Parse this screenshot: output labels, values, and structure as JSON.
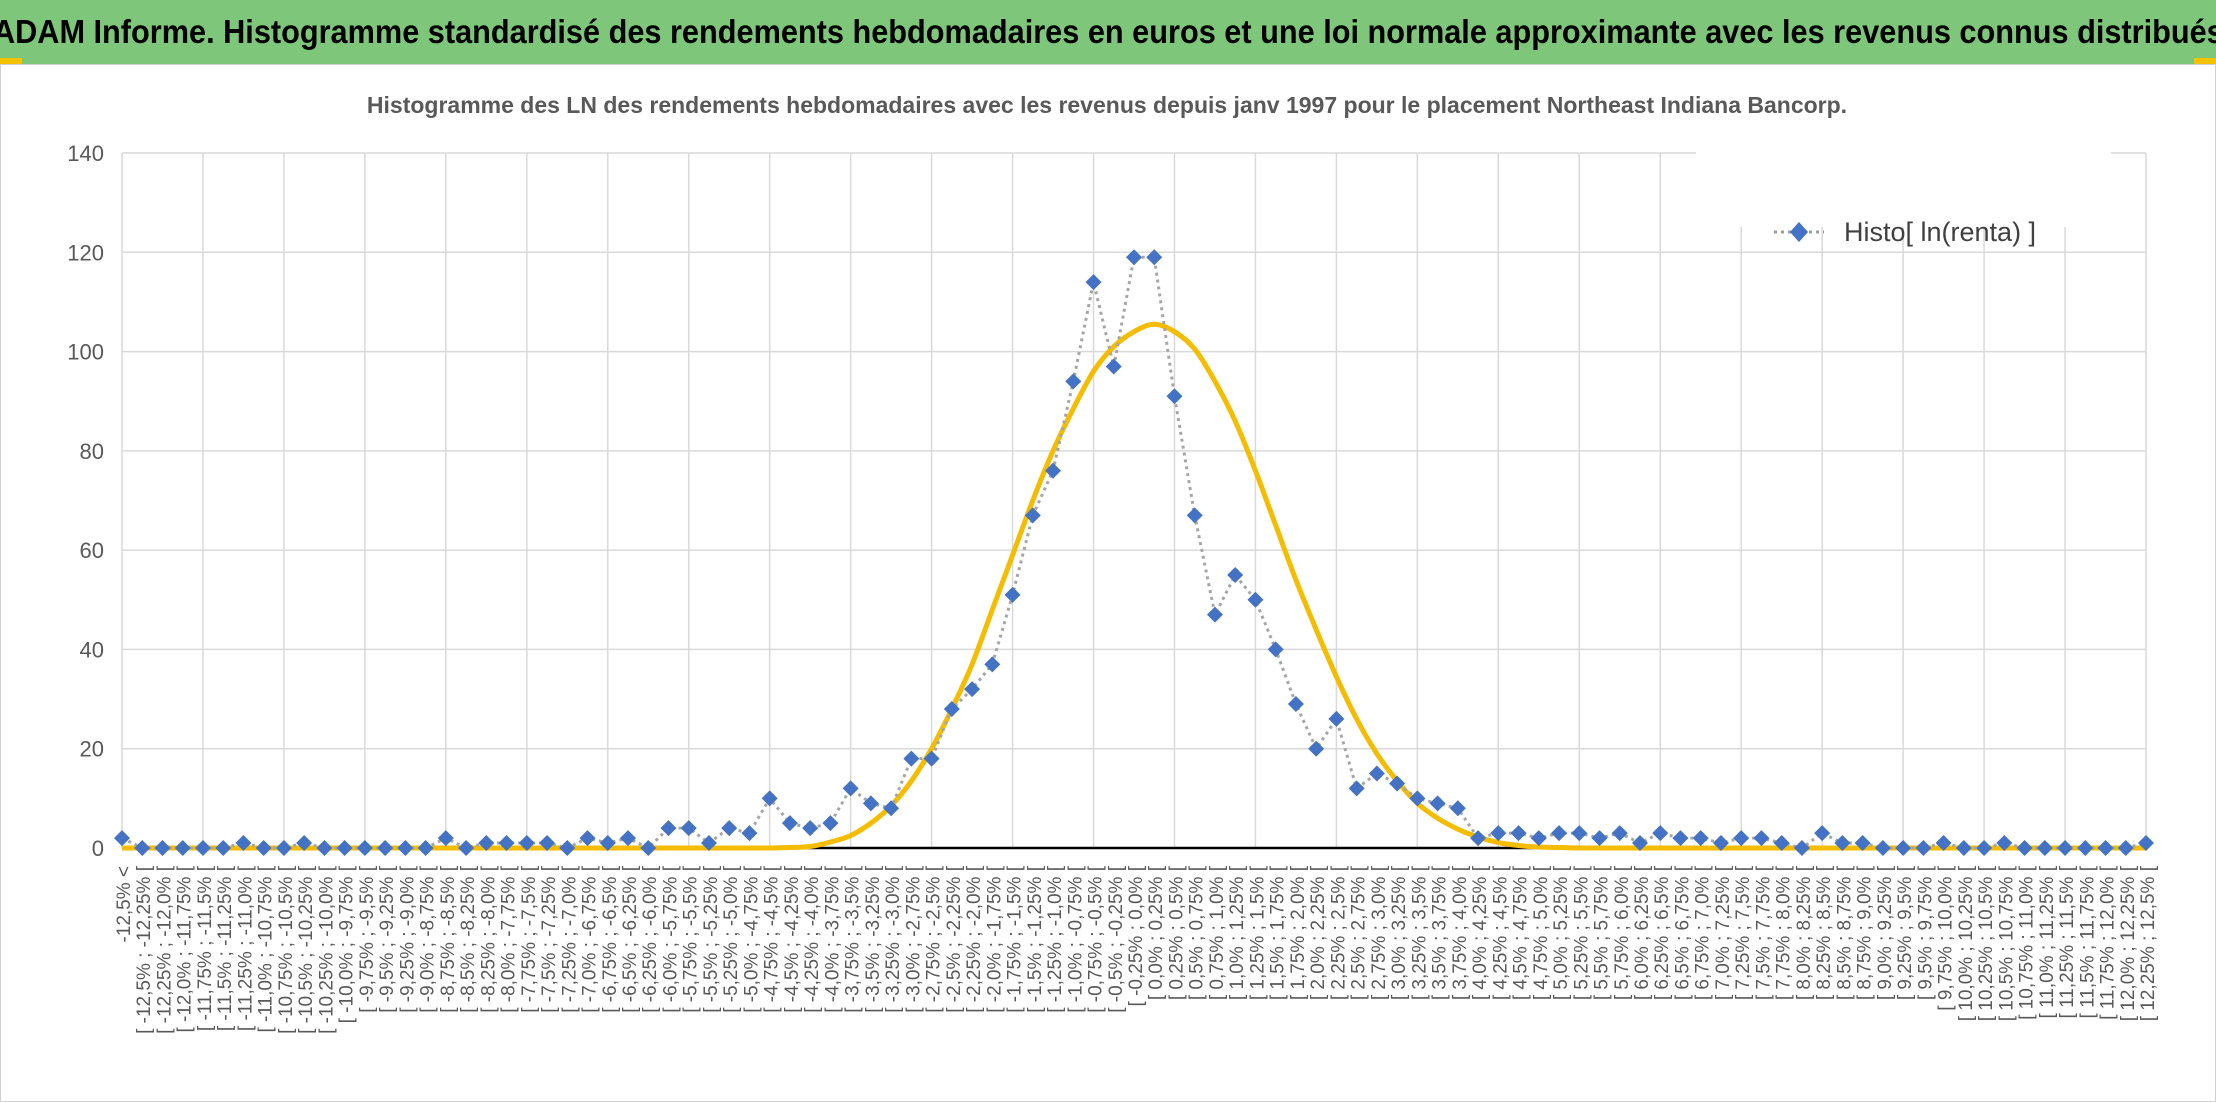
{
  "header": {
    "banner_title": "ADAM Informe. Histogramme standardisé des rendements hebdomadaires en euros et une loi normale approximante avec les revenus connus distribués"
  },
  "colors": {
    "banner_bg": "#7dc67a",
    "histogram": "#4472c4",
    "normal_curve": "#f5bc00",
    "grid": "#d9d9d9"
  },
  "chart_data": {
    "type": "line",
    "title": "Histogramme des LN des rendements hebdomadaires avec les revenus depuis janv 1997 pour le placement Northeast Indiana Bancorp.",
    "xlabel": "",
    "ylabel": "",
    "ylim": [
      0,
      140
    ],
    "yticks": [
      0,
      20,
      40,
      60,
      80,
      100,
      120,
      140
    ],
    "grid": true,
    "legend_position": "top-right",
    "categories": [
      "-12,5% <",
      "[ -12,5% ; -12,25% [",
      "[ -12,25% ; -12,0% [",
      "[ -12,0% ; -11,75% [",
      "[ -11,75% ; -11,5% [",
      "[ -11,5% ; -11,25% [",
      "[ -11,25% ; -11,0% [",
      "[ -11,0% ; -10,75% [",
      "[ -10,75% ; -10,5% [",
      "[ -10,5% ; -10,25% [",
      "[ -10,25% ; -10,0% [",
      "[ -10,0% ; -9,75% [",
      "[ -9,75% ; -9,5% [",
      "[ -9,5% ; -9,25% [",
      "[ -9,25% ; -9,0% [",
      "[ -9,0% ; -8,75% [",
      "[ -8,75% ; -8,5% [",
      "[ -8,5% ; -8,25% [",
      "[ -8,25% ; -8,0% [",
      "[ -8,0% ; -7,75% [",
      "[ -7,75% ; -7,5% [",
      "[ -7,5% ; -7,25% [",
      "[ -7,25% ; -7,0% [",
      "[ -7,0% ; -6,75% [",
      "[ -6,75% ; -6,5% [",
      "[ -6,5% ; -6,25% [",
      "[ -6,25% ; -6,0% [",
      "[ -6,0% ; -5,75% [",
      "[ -5,75% ; -5,5% [",
      "[ -5,5% ; -5,25% [",
      "[ -5,25% ; -5,0% [",
      "[ -5,0% ; -4,75% [",
      "[ -4,75% ; -4,5% [",
      "[ -4,5% ; -4,25% [",
      "[ -4,25% ; -4,0% [",
      "[ -4,0% ; -3,75% [",
      "[ -3,75% ; -3,5% [",
      "[ -3,5% ; -3,25% [",
      "[ -3,25% ; -3,0% [",
      "[ -3,0% ; -2,75% [",
      "[ -2,75% ; -2,5% [",
      "[ -2,5% ; -2,25% [",
      "[ -2,25% ; -2,0% [",
      "[ -2,0% ; -1,75% [",
      "[ -1,75% ; -1,5% [",
      "[ -1,5% ; -1,25% [",
      "[ -1,25% ; -1,0% [",
      "[ -1,0% ; -0,75% [",
      "[ -0,75% ; -0,5% [",
      "[ -0,5% ; -0,25% [",
      "[ -0,25% ; 0,0% [",
      "[ 0,0% ; 0,25% [",
      "[ 0,25% ; 0,5% [",
      "[ 0,5% ; 0,75% [",
      "[ 0,75% ; 1,0% [",
      "[ 1,0% ; 1,25% [",
      "[ 1,25% ; 1,5% [",
      "[ 1,5% ; 1,75% [",
      "[ 1,75% ; 2,0% [",
      "[ 2,0% ; 2,25% [",
      "[ 2,25% ; 2,5% [",
      "[ 2,5% ; 2,75% [",
      "[ 2,75% ; 3,0% [",
      "[ 3,0% ; 3,25% [",
      "[ 3,25% ; 3,5% [",
      "[ 3,5% ; 3,75% [",
      "[ 3,75% ; 4,0% [",
      "[ 4,0% ; 4,25% [",
      "[ 4,25% ; 4,5% [",
      "[ 4,5% ; 4,75% [",
      "[ 4,75% ; 5,0% [",
      "[ 5,0% ; 5,25% [",
      "[ 5,25% ; 5,5% [",
      "[ 5,5% ; 5,75% [",
      "[ 5,75% ; 6,0% [",
      "[ 6,0% ; 6,25% [",
      "[ 6,25% ; 6,5% [",
      "[ 6,5% ; 6,75% [",
      "[ 6,75% ; 7,0% [",
      "[ 7,0% ; 7,25% [",
      "[ 7,25% ; 7,5% [",
      "[ 7,5% ; 7,75% [",
      "[ 7,75% ; 8,0% [",
      "[ 8,0% ; 8,25% [",
      "[ 8,25% ; 8,5% [",
      "[ 8,5% ; 8,75% [",
      "[ 8,75% ; 9,0% [",
      "[ 9,0% ; 9,25% [",
      "[ 9,25% ; 9,5% [",
      "[ 9,5% ; 9,75% [",
      "[ 9,75% ; 10,0% [",
      "[ 10,0% ; 10,25% [",
      "[ 10,25% ; 10,5% [",
      "[ 10,5% ; 10,75% [",
      "[ 10,75% ; 11,0% [",
      "[ 11,0% ; 11,25% [",
      "[ 11,25% ; 11,5% [",
      "[ 11,5% ; 11,75% [",
      "[ 11,75% ; 12,0% [",
      "[ 12,0% ; 12,25% [",
      "[ 12,25% ; 12,5% ["
    ],
    "series": [
      {
        "name": "Histo[ ln(renta) ]",
        "style": "dotted-line-with-diamond-markers",
        "values": [
          2,
          0,
          0,
          0,
          0,
          0,
          1,
          0,
          0,
          1,
          0,
          0,
          0,
          0,
          0,
          0,
          2,
          0,
          1,
          1,
          1,
          1,
          0,
          2,
          1,
          2,
          0,
          4,
          4,
          1,
          4,
          3,
          10,
          5,
          4,
          5,
          12,
          9,
          8,
          18,
          18,
          28,
          32,
          37,
          51,
          67,
          76,
          94,
          114,
          97,
          119,
          119,
          91,
          67,
          47,
          55,
          50,
          40,
          29,
          20,
          26,
          12,
          15,
          13,
          10,
          9,
          8,
          2,
          3,
          3,
          2,
          3,
          3,
          2,
          3,
          1,
          3,
          2,
          2,
          1,
          2,
          2,
          1,
          0,
          3,
          1,
          1,
          0,
          0,
          0,
          1,
          0,
          0,
          1,
          0,
          0,
          0,
          0,
          0,
          0,
          1
        ]
      },
      {
        "style": "smooth-curve",
        "values": [
          0,
          0,
          0,
          0,
          0,
          0,
          0,
          0,
          0,
          0,
          0,
          0,
          0,
          0,
          0,
          0,
          0,
          0,
          0,
          0,
          0,
          0,
          0,
          0,
          0,
          0,
          0,
          0,
          0,
          0,
          0,
          0,
          0,
          0.1,
          0.3,
          1.2,
          2.5,
          5,
          8.5,
          13.5,
          20,
          28,
          37,
          48,
          59,
          70,
          80,
          88.5,
          96,
          101,
          104,
          105.5,
          104,
          100.5,
          94,
          86,
          76,
          65,
          54,
          44,
          34.5,
          26,
          19,
          13.5,
          9,
          6,
          3.8,
          2.2,
          1.1,
          0.5,
          0.2,
          0.1,
          0,
          0,
          0,
          0,
          0,
          0,
          0,
          0,
          0,
          0,
          0,
          0,
          0,
          0,
          0,
          0,
          0,
          0,
          0,
          0,
          0,
          0,
          0,
          0,
          0,
          0,
          0,
          0,
          0
        ]
      }
    ]
  }
}
